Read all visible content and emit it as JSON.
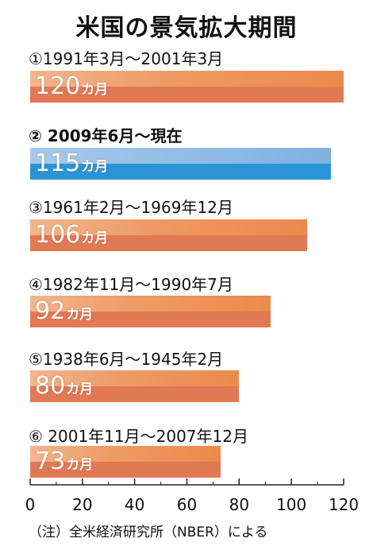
{
  "chart_data": {
    "type": "bar",
    "orientation": "horizontal",
    "title": "米国の景気拡大期間",
    "unit": "カ月",
    "xlim": [
      0,
      120
    ],
    "ticks": [
      0,
      20,
      40,
      60,
      80,
      100,
      120
    ],
    "items": [
      {
        "period": "①1991年3月～2001年3月",
        "value": 120,
        "label": "120",
        "color": "#ec8a4c"
      },
      {
        "period": "② 2009年6月～現在",
        "value": 115,
        "label": "115",
        "color": "#2a95d6",
        "current": true
      },
      {
        "period": "③1961年2月～1969年12月",
        "value": 106,
        "label": "106",
        "color": "#ec8a4c"
      },
      {
        "period": "④1982年11月～1990年7月",
        "value": 92,
        "label": "92",
        "color": "#ec8a4c"
      },
      {
        "period": "⑤1938年6月～1945年2月",
        "value": 80,
        "label": "80",
        "color": "#ec8a4c"
      },
      {
        "period": "⑥ 2001年11月～2007年12月",
        "value": 73,
        "label": "73",
        "color": "#ec8a4c"
      }
    ],
    "note": "（注）全米経済研究所（NBER）による"
  }
}
